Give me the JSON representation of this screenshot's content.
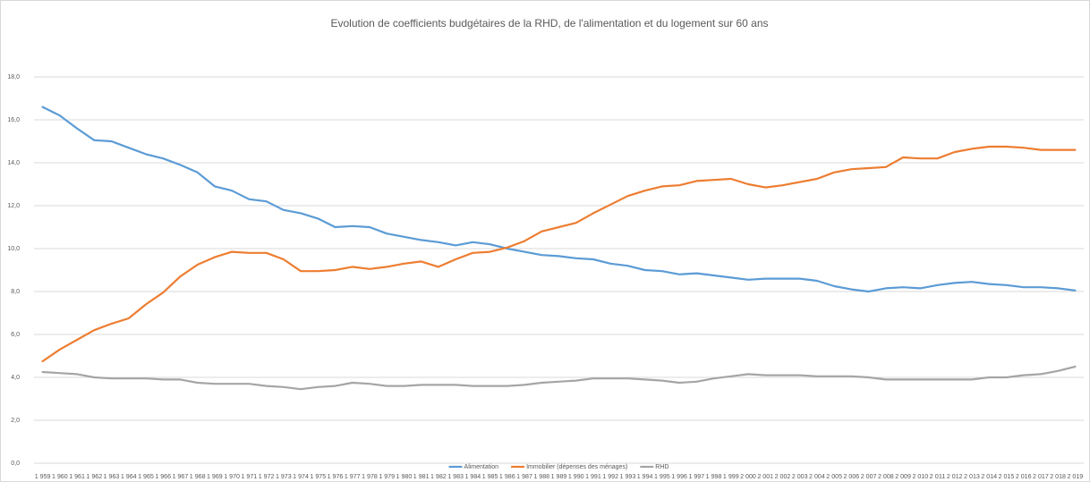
{
  "chart_data": {
    "type": "line",
    "title": "Evolution de coefficients budgétaires de la RHD, de l'alimentation et du logement sur 60 ans",
    "categories": [
      "1 959",
      "1 960",
      "1 961",
      "1 962",
      "1 963",
      "1 964",
      "1 965",
      "1 966",
      "1 967",
      "1 968",
      "1 969",
      "1 970",
      "1 971",
      "1 972",
      "1 973",
      "1 974",
      "1 975",
      "1 976",
      "1 977",
      "1 978",
      "1 979",
      "1 980",
      "1 981",
      "1 982",
      "1 983",
      "1 984",
      "1 985",
      "1 986",
      "1 987",
      "1 988",
      "1 989",
      "1 990",
      "1 991",
      "1 992",
      "1 993",
      "1 994",
      "1 995",
      "1 996",
      "1 997",
      "1 998",
      "1 999",
      "2 000",
      "2 001",
      "2 002",
      "2 003",
      "2 004",
      "2 005",
      "2 006",
      "2 007",
      "2 008",
      "2 009",
      "2 010",
      "2 011",
      "2 012",
      "2 013",
      "2 014",
      "2 015",
      "2 016",
      "2 017",
      "2 018",
      "2 019"
    ],
    "series": [
      {
        "name": "Alimentation",
        "color": "#5b9bd5",
        "values": [
          16.6,
          16.2,
          15.6,
          15.05,
          15.0,
          14.7,
          14.4,
          14.2,
          13.9,
          13.55,
          12.9,
          12.7,
          12.3,
          12.2,
          11.8,
          11.65,
          11.4,
          11.0,
          11.05,
          11.0,
          10.7,
          10.55,
          10.4,
          10.3,
          10.15,
          10.3,
          10.2,
          10.0,
          9.85,
          9.7,
          9.65,
          9.55,
          9.5,
          9.3,
          9.2,
          9.0,
          8.95,
          8.8,
          8.85,
          8.75,
          8.65,
          8.55,
          8.6,
          8.6,
          8.6,
          8.5,
          8.25,
          8.1,
          8.0,
          8.15,
          8.2,
          8.15,
          8.3,
          8.4,
          8.45,
          8.35,
          8.3,
          8.2,
          8.2,
          8.15,
          8.05
        ]
      },
      {
        "name": "Immobilier (dépenses des ménages)",
        "color": "#ed7d31",
        "values": [
          4.75,
          5.3,
          5.75,
          6.2,
          6.5,
          6.75,
          7.4,
          7.95,
          8.7,
          9.25,
          9.6,
          9.85,
          9.8,
          9.8,
          9.5,
          8.95,
          8.95,
          9.0,
          9.15,
          9.05,
          9.15,
          9.3,
          9.4,
          9.15,
          9.5,
          9.8,
          9.85,
          10.05,
          10.35,
          10.8,
          11.0,
          11.2,
          11.65,
          12.05,
          12.45,
          12.7,
          12.9,
          12.95,
          13.15,
          13.2,
          13.25,
          13.0,
          12.85,
          12.95,
          13.1,
          13.25,
          13.55,
          13.7,
          13.75,
          13.8,
          14.25,
          14.2,
          14.2,
          14.5,
          14.65,
          14.75,
          14.75,
          14.7,
          14.6,
          14.6,
          14.6
        ]
      },
      {
        "name": "RHD",
        "color": "#a5a5a5",
        "values": [
          4.25,
          4.2,
          4.15,
          4.0,
          3.95,
          3.95,
          3.95,
          3.9,
          3.9,
          3.75,
          3.7,
          3.7,
          3.7,
          3.6,
          3.55,
          3.45,
          3.55,
          3.6,
          3.75,
          3.7,
          3.6,
          3.6,
          3.65,
          3.65,
          3.65,
          3.6,
          3.6,
          3.6,
          3.65,
          3.75,
          3.8,
          3.85,
          3.95,
          3.95,
          3.95,
          3.9,
          3.85,
          3.75,
          3.8,
          3.95,
          4.05,
          4.15,
          4.1,
          4.1,
          4.1,
          4.05,
          4.05,
          4.05,
          4.0,
          3.9,
          3.9,
          3.9,
          3.9,
          3.9,
          3.9,
          4.0,
          4.0,
          4.1,
          4.15,
          4.3,
          4.5
        ]
      }
    ],
    "ylim": [
      0,
      18
    ],
    "yticks": [
      {
        "value": 0,
        "label": "0,0"
      },
      {
        "value": 2,
        "label": "2,0"
      },
      {
        "value": 4,
        "label": "4,0"
      },
      {
        "value": 6,
        "label": "6,0"
      },
      {
        "value": 8,
        "label": "8,0"
      },
      {
        "value": 10,
        "label": "10,0"
      },
      {
        "value": 12,
        "label": "12,0"
      },
      {
        "value": 14,
        "label": "14,0"
      },
      {
        "value": 16,
        "label": "16,0"
      },
      {
        "value": 18,
        "label": "18,0"
      }
    ],
    "grid": true,
    "legend": "bottom"
  }
}
